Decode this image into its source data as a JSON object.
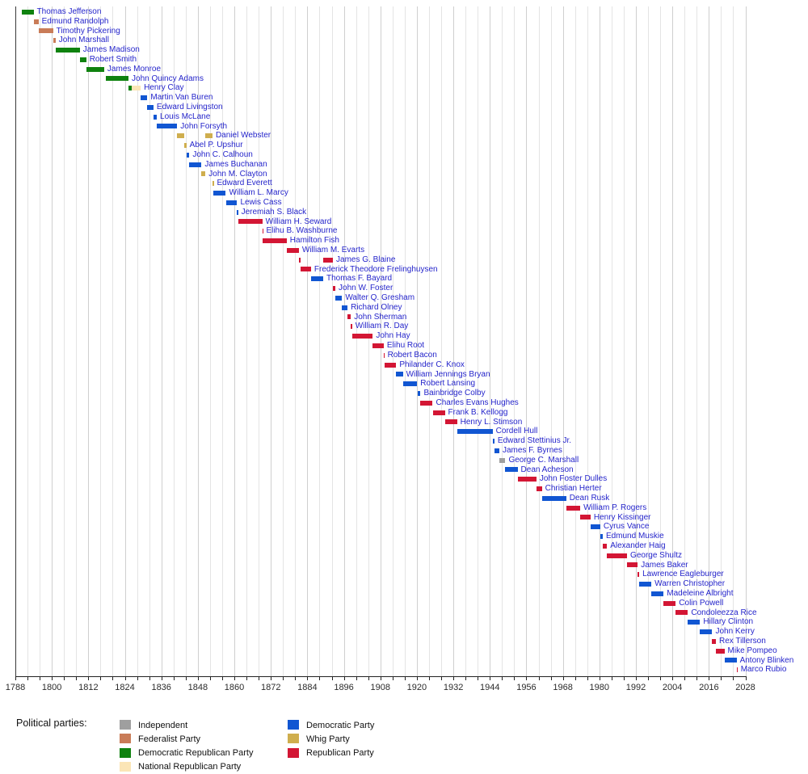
{
  "colors": {
    "name_text": "#2525cb",
    "axis_line": "#222222",
    "gridline_minor": "#e4e4e4",
    "gridline_major": "#cfcfcf"
  },
  "legend": {
    "title": "Political parties:",
    "columns": [
      [
        "independent",
        "federalist",
        "democratic-republican",
        "national-republican"
      ],
      [
        "democratic",
        "whig",
        "republican"
      ]
    ]
  },
  "chart_data": {
    "type": "bar",
    "variant": "horizontal-timeline-gantt",
    "title": "",
    "xlabel": "",
    "ylabel": "",
    "x_axis": {
      "min": 1788,
      "max": 2028,
      "label_step": 12,
      "minor_step": 4,
      "tick_labels": [
        "1788",
        "1800",
        "1812",
        "1824",
        "1836",
        "1848",
        "1860",
        "1872",
        "1884",
        "1896",
        "1908",
        "1920",
        "1932",
        "1944",
        "1956",
        "1968",
        "1980",
        "1992",
        "2004",
        "2016",
        "2028"
      ],
      "grid": true
    },
    "parties": {
      "independent": {
        "label": "Independent",
        "color": "#9f9f9f"
      },
      "federalist": {
        "label": "Federalist Party",
        "color": "#c97c58"
      },
      "democratic-republican": {
        "label": "Democratic Republican Party",
        "color": "#0f820f"
      },
      "national-republican": {
        "label": "National Republican Party",
        "color": "#fbe5b6"
      },
      "democratic": {
        "label": "Democratic Party",
        "color": "#1156d2"
      },
      "whig": {
        "label": "Whig Party",
        "color": "#cfae4e"
      },
      "republican": {
        "label": "Republican Party",
        "color": "#d31634"
      }
    },
    "secretaries": [
      {
        "name": "Thomas Jefferson",
        "segments": [
          {
            "party": "democratic-republican",
            "start": 1790.2,
            "end": 1794.0
          }
        ]
      },
      {
        "name": "Edmund Randolph",
        "segments": [
          {
            "party": "federalist",
            "start": 1794.0,
            "end": 1795.6
          }
        ]
      },
      {
        "name": "Timothy Pickering",
        "segments": [
          {
            "party": "federalist",
            "start": 1795.6,
            "end": 1800.4
          }
        ]
      },
      {
        "name": "John Marshall",
        "segments": [
          {
            "party": "federalist",
            "start": 1800.4,
            "end": 1801.2
          }
        ]
      },
      {
        "name": "James Madison",
        "segments": [
          {
            "party": "democratic-republican",
            "start": 1801.3,
            "end": 1809.2
          }
        ]
      },
      {
        "name": "Robert Smith",
        "segments": [
          {
            "party": "democratic-republican",
            "start": 1809.2,
            "end": 1811.3
          }
        ]
      },
      {
        "name": "James Monroe",
        "segments": [
          {
            "party": "democratic-republican",
            "start": 1811.3,
            "end": 1817.2
          }
        ]
      },
      {
        "name": "John Quincy Adams",
        "segments": [
          {
            "party": "democratic-republican",
            "start": 1817.7,
            "end": 1825.2
          }
        ]
      },
      {
        "name": "Henry Clay",
        "segments": [
          {
            "party": "democratic-republican",
            "start": 1825.2,
            "end": 1826.2
          },
          {
            "party": "national-republican",
            "start": 1826.2,
            "end": 1829.2
          }
        ]
      },
      {
        "name": "Martin Van Buren",
        "segments": [
          {
            "party": "democratic",
            "start": 1829.2,
            "end": 1831.4
          }
        ]
      },
      {
        "name": "Edward Livingston",
        "segments": [
          {
            "party": "democratic",
            "start": 1831.4,
            "end": 1833.4
          }
        ]
      },
      {
        "name": "Louis McLane",
        "segments": [
          {
            "party": "democratic",
            "start": 1833.4,
            "end": 1834.5
          }
        ]
      },
      {
        "name": "John Forsyth",
        "segments": [
          {
            "party": "democratic",
            "start": 1834.5,
            "end": 1841.2
          }
        ]
      },
      {
        "name": "Daniel Webster",
        "segments": [
          {
            "party": "whig",
            "start": 1841.2,
            "end": 1843.4
          },
          {
            "party": "whig",
            "start": 1850.5,
            "end": 1852.8
          }
        ]
      },
      {
        "name": "Abel P. Upshur",
        "segments": [
          {
            "party": "whig",
            "start": 1843.5,
            "end": 1844.2
          }
        ]
      },
      {
        "name": "John C. Calhoun",
        "segments": [
          {
            "party": "democratic",
            "start": 1844.3,
            "end": 1845.2
          }
        ]
      },
      {
        "name": "James Buchanan",
        "segments": [
          {
            "party": "democratic",
            "start": 1845.2,
            "end": 1849.2
          }
        ]
      },
      {
        "name": "John M. Clayton",
        "segments": [
          {
            "party": "whig",
            "start": 1849.2,
            "end": 1850.5
          }
        ]
      },
      {
        "name": "Edward Everett",
        "segments": [
          {
            "party": "whig",
            "start": 1852.8,
            "end": 1853.2
          }
        ]
      },
      {
        "name": "William L. Marcy",
        "segments": [
          {
            "party": "democratic",
            "start": 1853.2,
            "end": 1857.2
          }
        ]
      },
      {
        "name": "Lewis Cass",
        "segments": [
          {
            "party": "democratic",
            "start": 1857.2,
            "end": 1860.9
          }
        ]
      },
      {
        "name": "Jeremiah S. Black",
        "segments": [
          {
            "party": "democratic",
            "start": 1860.9,
            "end": 1861.2
          }
        ]
      },
      {
        "name": "William H. Seward",
        "segments": [
          {
            "party": "republican",
            "start": 1861.2,
            "end": 1869.2
          }
        ]
      },
      {
        "name": "Elihu B. Washburne",
        "segments": [
          {
            "party": "republican",
            "start": 1869.2,
            "end": 1869.4
          }
        ]
      },
      {
        "name": "Hamilton Fish",
        "segments": [
          {
            "party": "republican",
            "start": 1869.3,
            "end": 1877.2
          }
        ]
      },
      {
        "name": "William M. Evarts",
        "segments": [
          {
            "party": "republican",
            "start": 1877.2,
            "end": 1881.2
          }
        ]
      },
      {
        "name": "James G. Blaine",
        "segments": [
          {
            "party": "republican",
            "start": 1881.2,
            "end": 1881.9
          },
          {
            "party": "republican",
            "start": 1889.2,
            "end": 1892.4
          }
        ]
      },
      {
        "name": "Frederick Theodore Frelinghuysen",
        "segments": [
          {
            "party": "republican",
            "start": 1881.9,
            "end": 1885.2
          }
        ]
      },
      {
        "name": "Thomas F. Bayard",
        "segments": [
          {
            "party": "democratic",
            "start": 1885.2,
            "end": 1889.2
          }
        ]
      },
      {
        "name": "John W. Foster",
        "segments": [
          {
            "party": "republican",
            "start": 1892.5,
            "end": 1893.2
          }
        ]
      },
      {
        "name": "Walter Q. Gresham",
        "segments": [
          {
            "party": "democratic",
            "start": 1893.2,
            "end": 1895.4
          }
        ]
      },
      {
        "name": "Richard Olney",
        "segments": [
          {
            "party": "democratic",
            "start": 1895.4,
            "end": 1897.2
          }
        ]
      },
      {
        "name": "John Sherman",
        "segments": [
          {
            "party": "republican",
            "start": 1897.2,
            "end": 1898.3
          }
        ]
      },
      {
        "name": "William R. Day",
        "segments": [
          {
            "party": "republican",
            "start": 1898.3,
            "end": 1898.7
          }
        ]
      },
      {
        "name": "John Hay",
        "segments": [
          {
            "party": "republican",
            "start": 1898.7,
            "end": 1905.5
          }
        ]
      },
      {
        "name": "Elihu Root",
        "segments": [
          {
            "party": "republican",
            "start": 1905.5,
            "end": 1909.1
          }
        ]
      },
      {
        "name": "Robert Bacon",
        "segments": [
          {
            "party": "republican",
            "start": 1909.1,
            "end": 1909.3
          }
        ]
      },
      {
        "name": "Philander C. Knox",
        "segments": [
          {
            "party": "republican",
            "start": 1909.3,
            "end": 1913.2
          }
        ]
      },
      {
        "name": "William Jennings Bryan",
        "segments": [
          {
            "party": "democratic",
            "start": 1913.2,
            "end": 1915.4
          }
        ]
      },
      {
        "name": "Robert Lansing",
        "segments": [
          {
            "party": "democratic",
            "start": 1915.5,
            "end": 1920.1
          }
        ]
      },
      {
        "name": "Bainbridge Colby",
        "segments": [
          {
            "party": "democratic",
            "start": 1920.2,
            "end": 1921.2
          }
        ]
      },
      {
        "name": "Charles Evans Hughes",
        "segments": [
          {
            "party": "republican",
            "start": 1921.2,
            "end": 1925.2
          }
        ]
      },
      {
        "name": "Frank B. Kellogg",
        "segments": [
          {
            "party": "republican",
            "start": 1925.2,
            "end": 1929.2
          }
        ]
      },
      {
        "name": "Henry L. Stimson",
        "segments": [
          {
            "party": "republican",
            "start": 1929.2,
            "end": 1933.2
          }
        ]
      },
      {
        "name": "Cordell Hull",
        "segments": [
          {
            "party": "democratic",
            "start": 1933.2,
            "end": 1944.9
          }
        ]
      },
      {
        "name": "Edward Stettinius Jr.",
        "segments": [
          {
            "party": "democratic",
            "start": 1944.9,
            "end": 1945.5
          }
        ]
      },
      {
        "name": "James F. Byrnes",
        "segments": [
          {
            "party": "democratic",
            "start": 1945.5,
            "end": 1947.1
          }
        ]
      },
      {
        "name": "George C. Marshall",
        "segments": [
          {
            "party": "independent",
            "start": 1947.1,
            "end": 1949.1
          }
        ]
      },
      {
        "name": "Dean Acheson",
        "segments": [
          {
            "party": "democratic",
            "start": 1949.1,
            "end": 1953.1
          }
        ]
      },
      {
        "name": "John Foster Dulles",
        "segments": [
          {
            "party": "republican",
            "start": 1953.1,
            "end": 1959.3
          }
        ]
      },
      {
        "name": "Christian Herter",
        "segments": [
          {
            "party": "republican",
            "start": 1959.3,
            "end": 1961.1
          }
        ]
      },
      {
        "name": "Dean Rusk",
        "segments": [
          {
            "party": "democratic",
            "start": 1961.1,
            "end": 1969.1
          }
        ]
      },
      {
        "name": "William P. Rogers",
        "segments": [
          {
            "party": "republican",
            "start": 1969.1,
            "end": 1973.7
          }
        ]
      },
      {
        "name": "Henry Kissinger",
        "segments": [
          {
            "party": "republican",
            "start": 1973.7,
            "end": 1977.1
          }
        ]
      },
      {
        "name": "Cyrus Vance",
        "segments": [
          {
            "party": "democratic",
            "start": 1977.1,
            "end": 1980.3
          }
        ]
      },
      {
        "name": "Edmund Muskie",
        "segments": [
          {
            "party": "democratic",
            "start": 1980.4,
            "end": 1981.1
          }
        ]
      },
      {
        "name": "Alexander Haig",
        "segments": [
          {
            "party": "republican",
            "start": 1981.1,
            "end": 1982.5
          }
        ]
      },
      {
        "name": "George Shultz",
        "segments": [
          {
            "party": "republican",
            "start": 1982.5,
            "end": 1989.1
          }
        ]
      },
      {
        "name": "James Baker",
        "segments": [
          {
            "party": "republican",
            "start": 1989.1,
            "end": 1992.6
          }
        ]
      },
      {
        "name": "Lawrence Eagleburger",
        "segments": [
          {
            "party": "republican",
            "start": 1992.6,
            "end": 1993.1
          }
        ]
      },
      {
        "name": "Warren Christopher",
        "segments": [
          {
            "party": "democratic",
            "start": 1993.1,
            "end": 1997.1
          }
        ]
      },
      {
        "name": "Madeleine Albright",
        "segments": [
          {
            "party": "democratic",
            "start": 1997.1,
            "end": 2001.1
          }
        ]
      },
      {
        "name": "Colin Powell",
        "segments": [
          {
            "party": "republican",
            "start": 2001.1,
            "end": 2005.1
          }
        ]
      },
      {
        "name": "Condoleezza Rice",
        "segments": [
          {
            "party": "republican",
            "start": 2005.1,
            "end": 2009.1
          }
        ]
      },
      {
        "name": "Hillary Clinton",
        "segments": [
          {
            "party": "democratic",
            "start": 2009.1,
            "end": 2013.1
          }
        ]
      },
      {
        "name": "John Kerry",
        "segments": [
          {
            "party": "democratic",
            "start": 2013.1,
            "end": 2017.1
          }
        ]
      },
      {
        "name": "Rex Tillerson",
        "segments": [
          {
            "party": "republican",
            "start": 2017.1,
            "end": 2018.3
          }
        ]
      },
      {
        "name": "Mike Pompeo",
        "segments": [
          {
            "party": "republican",
            "start": 2018.3,
            "end": 2021.1
          }
        ]
      },
      {
        "name": "Antony Blinken",
        "segments": [
          {
            "party": "democratic",
            "start": 2021.1,
            "end": 2025.1
          }
        ]
      },
      {
        "name": "Marco Rubio",
        "segments": [
          {
            "party": "republican",
            "start": 2025.1,
            "end": 2025.4
          }
        ]
      }
    ]
  }
}
